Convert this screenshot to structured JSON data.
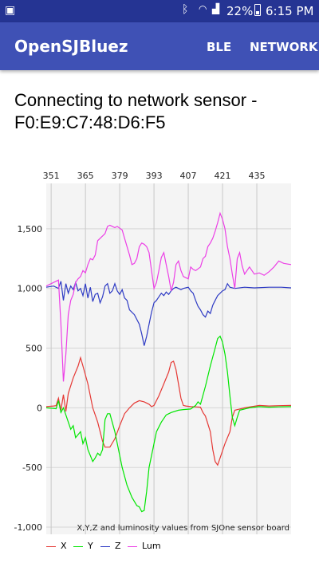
{
  "status_bar": {
    "battery": "22%",
    "time": "6:15 PM"
  },
  "app_bar": {
    "title": "OpenSJBluez",
    "menu": [
      "BLE",
      "NETWORK"
    ]
  },
  "heading": "Connecting to network sensor - F0:E9:C7:48:D6:F5",
  "chart_data": {
    "type": "line",
    "description": "X,Y,Z and luminosity values from SJOne sensor board",
    "x_ticks": [
      351,
      365,
      379,
      393,
      407,
      421,
      435
    ],
    "y_ticks": [
      1500,
      1000,
      500,
      0,
      -500,
      -1000
    ],
    "y_tick_labels": [
      "1,500",
      "1,000",
      "500",
      "0",
      "-500",
      "-1,000"
    ],
    "xlim": [
      349,
      449
    ],
    "ylim": [
      -1060,
      1880
    ],
    "grid": true,
    "legend": "bottom-left",
    "series": [
      {
        "name": "X",
        "color": "#e53935",
        "points": [
          [
            349,
            10
          ],
          [
            352,
            15
          ],
          [
            353,
            18
          ],
          [
            354,
            80
          ],
          [
            355,
            -20
          ],
          [
            356,
            110
          ],
          [
            357,
            -30
          ],
          [
            358,
            120
          ],
          [
            360,
            250
          ],
          [
            362,
            350
          ],
          [
            363,
            420
          ],
          [
            364,
            350
          ],
          [
            366,
            200
          ],
          [
            368,
            0
          ],
          [
            370,
            -120
          ],
          [
            372,
            -280
          ],
          [
            373,
            -330
          ],
          [
            375,
            -330
          ],
          [
            377,
            -260
          ],
          [
            379,
            -150
          ],
          [
            381,
            -50
          ],
          [
            383,
            0
          ],
          [
            385,
            40
          ],
          [
            387,
            60
          ],
          [
            389,
            50
          ],
          [
            391,
            30
          ],
          [
            392,
            10
          ],
          [
            393,
            20
          ],
          [
            395,
            100
          ],
          [
            397,
            200
          ],
          [
            399,
            300
          ],
          [
            400,
            380
          ],
          [
            401,
            390
          ],
          [
            402,
            320
          ],
          [
            403,
            200
          ],
          [
            404,
            80
          ],
          [
            405,
            20
          ],
          [
            406,
            15
          ],
          [
            408,
            10
          ],
          [
            410,
            8
          ],
          [
            412,
            5
          ],
          [
            413,
            -40
          ],
          [
            414,
            -70
          ],
          [
            416,
            -200
          ],
          [
            417,
            -350
          ],
          [
            418,
            -450
          ],
          [
            419,
            -480
          ],
          [
            420,
            -420
          ],
          [
            422,
            -300
          ],
          [
            424,
            -200
          ],
          [
            425,
            -80
          ],
          [
            426,
            -20
          ],
          [
            428,
            -10
          ],
          [
            430,
            0
          ],
          [
            433,
            10
          ],
          [
            436,
            20
          ],
          [
            440,
            15
          ],
          [
            444,
            18
          ],
          [
            449,
            20
          ]
        ]
      },
      {
        "name": "Y",
        "color": "#00e600",
        "points": [
          [
            349,
            0
          ],
          [
            352,
            -5
          ],
          [
            353,
            -8
          ],
          [
            354,
            60
          ],
          [
            355,
            -40
          ],
          [
            356,
            0
          ],
          [
            357,
            -60
          ],
          [
            359,
            -180
          ],
          [
            360,
            -150
          ],
          [
            361,
            -250
          ],
          [
            363,
            -200
          ],
          [
            364,
            -300
          ],
          [
            365,
            -250
          ],
          [
            366,
            -350
          ],
          [
            368,
            -450
          ],
          [
            369,
            -420
          ],
          [
            370,
            -380
          ],
          [
            371,
            -400
          ],
          [
            372,
            -350
          ],
          [
            373,
            -100
          ],
          [
            374,
            -50
          ],
          [
            375,
            -50
          ],
          [
            377,
            -200
          ],
          [
            380,
            -500
          ],
          [
            382,
            -650
          ],
          [
            384,
            -750
          ],
          [
            386,
            -820
          ],
          [
            387,
            -830
          ],
          [
            388,
            -870
          ],
          [
            389,
            -860
          ],
          [
            390,
            -700
          ],
          [
            391,
            -500
          ],
          [
            393,
            -300
          ],
          [
            394,
            -200
          ],
          [
            396,
            -120
          ],
          [
            398,
            -60
          ],
          [
            400,
            -40
          ],
          [
            403,
            -20
          ],
          [
            405,
            -15
          ],
          [
            408,
            -10
          ],
          [
            410,
            20
          ],
          [
            411,
            50
          ],
          [
            412,
            30
          ],
          [
            414,
            180
          ],
          [
            416,
            350
          ],
          [
            418,
            500
          ],
          [
            419,
            580
          ],
          [
            420,
            600
          ],
          [
            421,
            550
          ],
          [
            422,
            450
          ],
          [
            423,
            300
          ],
          [
            424,
            100
          ],
          [
            425,
            -80
          ],
          [
            426,
            -150
          ],
          [
            427,
            -80
          ],
          [
            428,
            -20
          ],
          [
            432,
            0
          ],
          [
            436,
            10
          ],
          [
            440,
            5
          ],
          [
            444,
            8
          ],
          [
            449,
            10
          ]
        ]
      },
      {
        "name": "Z",
        "color": "#2e3bc4",
        "points": [
          [
            349,
            1010
          ],
          [
            352,
            1020
          ],
          [
            354,
            1000
          ],
          [
            355,
            1060
          ],
          [
            356,
            900
          ],
          [
            357,
            1040
          ],
          [
            358,
            960
          ],
          [
            359,
            1020
          ],
          [
            360,
            990
          ],
          [
            361,
            1050
          ],
          [
            362,
            980
          ],
          [
            363,
            1000
          ],
          [
            364,
            940
          ],
          [
            365,
            1040
          ],
          [
            366,
            920
          ],
          [
            367,
            1010
          ],
          [
            368,
            890
          ],
          [
            369,
            950
          ],
          [
            370,
            960
          ],
          [
            371,
            880
          ],
          [
            372,
            930
          ],
          [
            373,
            1020
          ],
          [
            374,
            1040
          ],
          [
            375,
            960
          ],
          [
            376,
            980
          ],
          [
            377,
            1040
          ],
          [
            378,
            980
          ],
          [
            379,
            950
          ],
          [
            380,
            990
          ],
          [
            381,
            920
          ],
          [
            382,
            900
          ],
          [
            383,
            820
          ],
          [
            385,
            780
          ],
          [
            387,
            700
          ],
          [
            388,
            620
          ],
          [
            389,
            520
          ],
          [
            390,
            600
          ],
          [
            391,
            700
          ],
          [
            392,
            800
          ],
          [
            393,
            880
          ],
          [
            394,
            900
          ],
          [
            395,
            930
          ],
          [
            396,
            960
          ],
          [
            397,
            940
          ],
          [
            398,
            970
          ],
          [
            399,
            950
          ],
          [
            400,
            980
          ],
          [
            401,
            1000
          ],
          [
            402,
            1010
          ],
          [
            404,
            990
          ],
          [
            405,
            1000
          ],
          [
            407,
            1010
          ],
          [
            408,
            980
          ],
          [
            409,
            960
          ],
          [
            410,
            900
          ],
          [
            411,
            850
          ],
          [
            412,
            820
          ],
          [
            413,
            780
          ],
          [
            414,
            760
          ],
          [
            415,
            810
          ],
          [
            416,
            790
          ],
          [
            417,
            860
          ],
          [
            418,
            900
          ],
          [
            419,
            940
          ],
          [
            420,
            960
          ],
          [
            421,
            980
          ],
          [
            422,
            990
          ],
          [
            423,
            1040
          ],
          [
            424,
            1010
          ],
          [
            426,
            1000
          ],
          [
            430,
            1010
          ],
          [
            434,
            1005
          ],
          [
            440,
            1010
          ],
          [
            445,
            1010
          ],
          [
            449,
            1005
          ]
        ]
      },
      {
        "name": "Lum",
        "color": "#ec3fe6",
        "points": [
          [
            349,
            1020
          ],
          [
            352,
            1050
          ],
          [
            354,
            1070
          ],
          [
            355,
            700
          ],
          [
            356,
            220
          ],
          [
            357,
            450
          ],
          [
            358,
            780
          ],
          [
            359,
            900
          ],
          [
            360,
            950
          ],
          [
            361,
            1050
          ],
          [
            362,
            1080
          ],
          [
            363,
            1100
          ],
          [
            364,
            1150
          ],
          [
            365,
            1130
          ],
          [
            366,
            1200
          ],
          [
            367,
            1250
          ],
          [
            368,
            1240
          ],
          [
            369,
            1280
          ],
          [
            370,
            1400
          ],
          [
            372,
            1440
          ],
          [
            373,
            1460
          ],
          [
            374,
            1520
          ],
          [
            375,
            1530
          ],
          [
            377,
            1510
          ],
          [
            378,
            1520
          ],
          [
            380,
            1490
          ],
          [
            381,
            1420
          ],
          [
            382,
            1350
          ],
          [
            383,
            1280
          ],
          [
            384,
            1200
          ],
          [
            385,
            1210
          ],
          [
            386,
            1250
          ],
          [
            387,
            1350
          ],
          [
            388,
            1380
          ],
          [
            389,
            1370
          ],
          [
            390,
            1350
          ],
          [
            391,
            1300
          ],
          [
            392,
            1150
          ],
          [
            393,
            1000
          ],
          [
            394,
            1050
          ],
          [
            395,
            1150
          ],
          [
            396,
            1260
          ],
          [
            397,
            1300
          ],
          [
            398,
            1200
          ],
          [
            399,
            1100
          ],
          [
            400,
            980
          ],
          [
            401,
            1050
          ],
          [
            402,
            1200
          ],
          [
            403,
            1230
          ],
          [
            404,
            1150
          ],
          [
            405,
            1100
          ],
          [
            407,
            1080
          ],
          [
            408,
            1180
          ],
          [
            409,
            1160
          ],
          [
            410,
            1150
          ],
          [
            412,
            1180
          ],
          [
            413,
            1250
          ],
          [
            414,
            1270
          ],
          [
            415,
            1350
          ],
          [
            416,
            1380
          ],
          [
            417,
            1420
          ],
          [
            418,
            1480
          ],
          [
            419,
            1550
          ],
          [
            420,
            1630
          ],
          [
            421,
            1580
          ],
          [
            422,
            1500
          ],
          [
            423,
            1350
          ],
          [
            424,
            1250
          ],
          [
            425,
            1120
          ],
          [
            426,
            1000
          ],
          [
            427,
            1250
          ],
          [
            428,
            1300
          ],
          [
            429,
            1190
          ],
          [
            430,
            1120
          ],
          [
            432,
            1180
          ],
          [
            434,
            1120
          ],
          [
            436,
            1130
          ],
          [
            438,
            1110
          ],
          [
            440,
            1140
          ],
          [
            442,
            1180
          ],
          [
            444,
            1230
          ],
          [
            446,
            1210
          ],
          [
            449,
            1200
          ]
        ]
      }
    ]
  }
}
